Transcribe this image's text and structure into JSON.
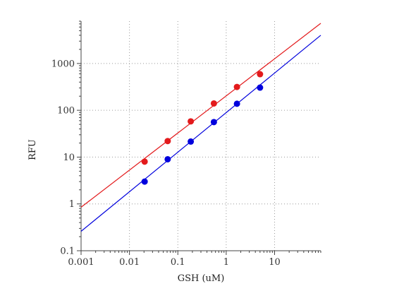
{
  "chart_data": {
    "type": "scatter",
    "xlabel": "GSH (uM)",
    "ylabel": "RFU",
    "xscale": "log",
    "yscale": "log",
    "xlim": [
      0.001,
      90
    ],
    "ylim": [
      0.1,
      8000
    ],
    "grid": true,
    "x_ticks": [
      {
        "value": 0.001,
        "label": "0.001"
      },
      {
        "value": 0.01,
        "label": "0.01"
      },
      {
        "value": 0.1,
        "label": "0.1"
      },
      {
        "value": 1,
        "label": "1"
      },
      {
        "value": 10,
        "label": "10"
      }
    ],
    "y_ticks": [
      {
        "value": 0.1,
        "label": "0.1"
      },
      {
        "value": 1,
        "label": "1"
      },
      {
        "value": 10,
        "label": "10"
      },
      {
        "value": 100,
        "label": "100"
      },
      {
        "value": 1000,
        "label": "1000"
      }
    ],
    "series": [
      {
        "color": "#e31a1c",
        "points": [
          {
            "x": 0.0206,
            "y": 8.0
          },
          {
            "x": 0.0617,
            "y": 22
          },
          {
            "x": 0.185,
            "y": 58
          },
          {
            "x": 0.556,
            "y": 140
          },
          {
            "x": 1.667,
            "y": 315
          },
          {
            "x": 5.0,
            "y": 590
          }
        ],
        "fit_line": [
          {
            "x": 0.001,
            "y": 0.85
          },
          {
            "x": 90,
            "y": 7200
          }
        ]
      },
      {
        "color": "#0000dd",
        "points": [
          {
            "x": 0.0206,
            "y": 3.0
          },
          {
            "x": 0.0617,
            "y": 9.0
          },
          {
            "x": 0.185,
            "y": 21.5
          },
          {
            "x": 0.556,
            "y": 56
          },
          {
            "x": 1.667,
            "y": 138
          },
          {
            "x": 5.0,
            "y": 305
          }
        ],
        "fit_line": [
          {
            "x": 0.001,
            "y": 0.26
          },
          {
            "x": 90,
            "y": 4000
          }
        ]
      }
    ]
  }
}
